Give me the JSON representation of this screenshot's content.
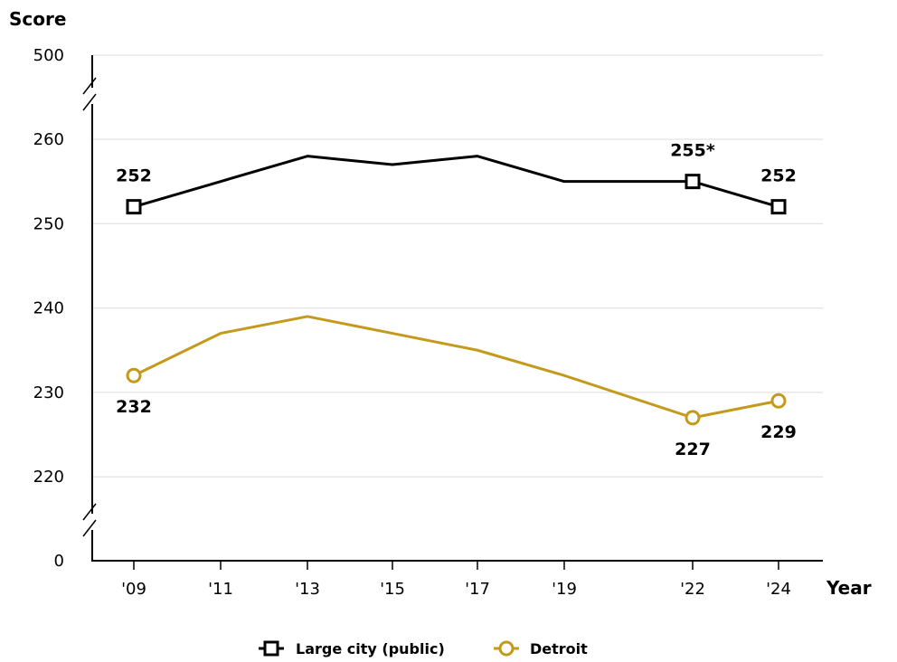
{
  "chart_data": {
    "type": "line",
    "ylabel": "Score",
    "xlabel": "Year",
    "x": [
      "'09",
      "'11",
      "'13",
      "'15",
      "'17",
      "'19",
      "'22",
      "'24"
    ],
    "yticks": [
      0,
      220,
      230,
      240,
      250,
      260,
      500
    ],
    "ylim_broken": [
      220,
      262
    ],
    "axis_breaks": [
      "between 260 and 500",
      "between 0 and 220"
    ],
    "grid": "horizontal",
    "legend_position": "bottom",
    "series": [
      {
        "name": "Large city (public)",
        "color": "#000000",
        "marker": "square",
        "values": [
          252,
          255,
          258,
          257,
          258,
          255,
          255,
          252
        ],
        "labels": {
          "'09": "252",
          "'22": "255*",
          "'24": "252"
        }
      },
      {
        "name": "Detroit",
        "color": "#c49a1c",
        "marker": "circle",
        "values": [
          232,
          237,
          239,
          237,
          235,
          232,
          227,
          229
        ],
        "labels": {
          "'09": "232",
          "'22": "227",
          "'24": "229"
        }
      }
    ]
  }
}
